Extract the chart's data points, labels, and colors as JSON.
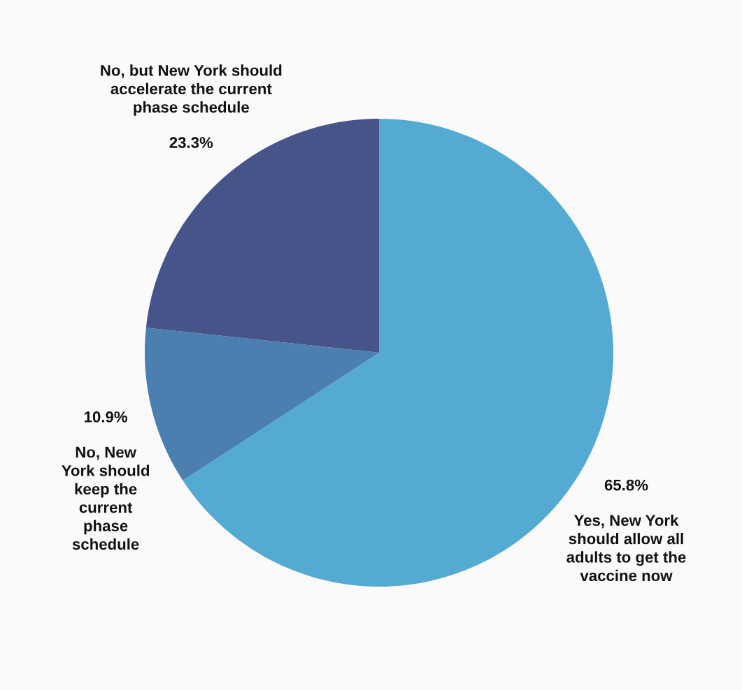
{
  "chart_data": {
    "type": "pie",
    "categories": [
      "Yes, New York\nshould allow all\nadults to get the\nvaccine now",
      "No, New\nYork should\nkeep the\ncurrent\nphase\nschedule",
      "No, but New York should\naccelerate the current\nphase schedule"
    ],
    "values": [
      65.8,
      10.9,
      23.3
    ],
    "value_labels": [
      "65.8%",
      "10.9%",
      "23.3%"
    ],
    "colors": [
      "#54aad2",
      "#4a7fb0",
      "#46548a"
    ]
  }
}
